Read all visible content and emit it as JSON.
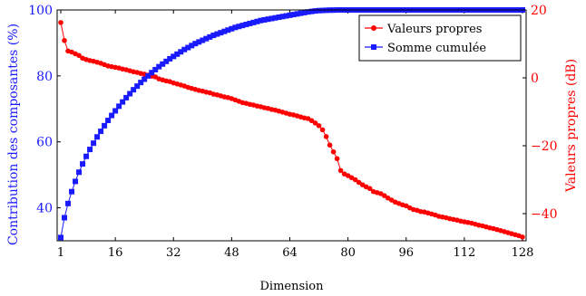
{
  "colors": {
    "left_series": "#1a1aff",
    "right_series": "#ff0000",
    "axis": "#000000",
    "background": "#ffffff"
  },
  "chart_data": {
    "type": "line",
    "title": "",
    "xlabel": "Dimension",
    "ylabel_left": "Contribution des composantes (%)",
    "ylabel_right": "Valeurs propres (dB)",
    "xlim": [
      0,
      129
    ],
    "ylim_left": [
      30,
      100
    ],
    "ylim_right": [
      -48,
      20
    ],
    "xticks": [
      1,
      16,
      32,
      48,
      64,
      80,
      96,
      112,
      128
    ],
    "yticks_left": [
      40,
      60,
      80,
      100
    ],
    "yticks_right": [
      -40,
      -20,
      0,
      20
    ],
    "grid": false,
    "legend_position": "top-right",
    "x": [
      1,
      2,
      3,
      4,
      5,
      6,
      7,
      8,
      9,
      10,
      11,
      12,
      13,
      14,
      15,
      16,
      17,
      18,
      19,
      20,
      21,
      22,
      23,
      24,
      25,
      26,
      27,
      28,
      29,
      30,
      31,
      32,
      33,
      34,
      35,
      36,
      37,
      38,
      39,
      40,
      41,
      42,
      43,
      44,
      45,
      46,
      47,
      48,
      49,
      50,
      51,
      52,
      53,
      54,
      55,
      56,
      57,
      58,
      59,
      60,
      61,
      62,
      63,
      64,
      65,
      66,
      67,
      68,
      69,
      70,
      71,
      72,
      73,
      74,
      75,
      76,
      77,
      78,
      79,
      80,
      81,
      82,
      83,
      84,
      85,
      86,
      87,
      88,
      89,
      90,
      91,
      92,
      93,
      94,
      95,
      96,
      97,
      98,
      99,
      100,
      101,
      102,
      103,
      104,
      105,
      106,
      107,
      108,
      109,
      110,
      111,
      112,
      113,
      114,
      115,
      116,
      117,
      118,
      119,
      120,
      121,
      122,
      123,
      124,
      125,
      126,
      127,
      128
    ],
    "series": [
      {
        "name": "Valeurs propres",
        "axis": "right",
        "marker": "circle",
        "values": [
          16.3,
          11.0,
          7.9,
          7.6,
          7.1,
          6.6,
          5.8,
          5.4,
          5.1,
          4.9,
          4.6,
          4.3,
          3.9,
          3.5,
          3.3,
          3.1,
          2.9,
          2.6,
          2.4,
          2.1,
          1.8,
          1.6,
          1.3,
          1.1,
          0.8,
          0.5,
          0.3,
          -0.3,
          -0.6,
          -0.9,
          -1.1,
          -1.5,
          -1.8,
          -2.1,
          -2.4,
          -2.8,
          -3.1,
          -3.4,
          -3.7,
          -3.9,
          -4.2,
          -4.4,
          -4.8,
          -5.0,
          -5.3,
          -5.6,
          -5.8,
          -6.1,
          -6.5,
          -6.9,
          -7.3,
          -7.5,
          -7.8,
          -8.0,
          -8.3,
          -8.5,
          -8.8,
          -9.0,
          -9.3,
          -9.5,
          -9.8,
          -10.1,
          -10.4,
          -10.7,
          -10.9,
          -11.2,
          -11.5,
          -11.8,
          -12.0,
          -12.6,
          -13.3,
          -14.1,
          -15.3,
          -17.3,
          -19.8,
          -21.8,
          -23.8,
          -27.3,
          -28.3,
          -28.8,
          -29.4,
          -30.0,
          -30.8,
          -31.5,
          -32.1,
          -32.6,
          -33.5,
          -33.8,
          -34.1,
          -34.7,
          -35.4,
          -36.0,
          -36.6,
          -37.0,
          -37.4,
          -37.7,
          -38.3,
          -38.8,
          -39.0,
          -39.4,
          -39.5,
          -39.8,
          -40.1,
          -40.4,
          -40.8,
          -41.0,
          -41.2,
          -41.5,
          -41.7,
          -41.9,
          -42.2,
          -42.4,
          -42.6,
          -42.8,
          -43.1,
          -43.4,
          -43.6,
          -43.9,
          -44.2,
          -44.4,
          -44.7,
          -45.0,
          -45.3,
          -45.6,
          -45.9,
          -46.2,
          -46.5,
          -46.9
        ]
      },
      {
        "name": "Somme cumulée",
        "axis": "left",
        "marker": "square",
        "values": [
          31.0,
          37.0,
          41.3,
          44.9,
          48.0,
          50.8,
          53.3,
          55.6,
          57.7,
          59.6,
          61.5,
          63.2,
          64.9,
          66.5,
          68.0,
          69.4,
          70.8,
          72.1,
          73.4,
          74.6,
          75.8,
          76.9,
          78.0,
          79.0,
          80.0,
          81.0,
          81.9,
          82.8,
          83.6,
          84.4,
          85.2,
          85.9,
          86.6,
          87.3,
          88.0,
          88.6,
          89.2,
          89.8,
          90.3,
          90.8,
          91.3,
          91.8,
          92.3,
          92.7,
          93.1,
          93.5,
          93.9,
          94.3,
          94.7,
          95.0,
          95.3,
          95.6,
          95.9,
          96.2,
          96.5,
          96.8,
          97.0,
          97.2,
          97.4,
          97.6,
          97.8,
          98.0,
          98.2,
          98.4,
          98.6,
          98.8,
          99.0,
          99.2,
          99.4,
          99.55,
          99.7,
          99.8,
          99.85,
          99.9,
          99.95,
          99.95,
          100,
          100,
          100,
          100,
          100,
          100,
          100,
          100,
          100,
          100,
          100,
          100,
          100,
          100,
          100,
          100,
          100,
          100,
          100,
          100,
          100,
          100,
          100,
          100,
          100,
          100,
          100,
          100,
          100,
          100,
          100,
          100,
          100,
          100,
          100,
          100,
          100,
          100,
          100,
          100,
          100,
          100,
          100,
          100,
          100,
          100,
          100,
          100,
          100,
          100,
          100,
          100
        ]
      }
    ]
  }
}
